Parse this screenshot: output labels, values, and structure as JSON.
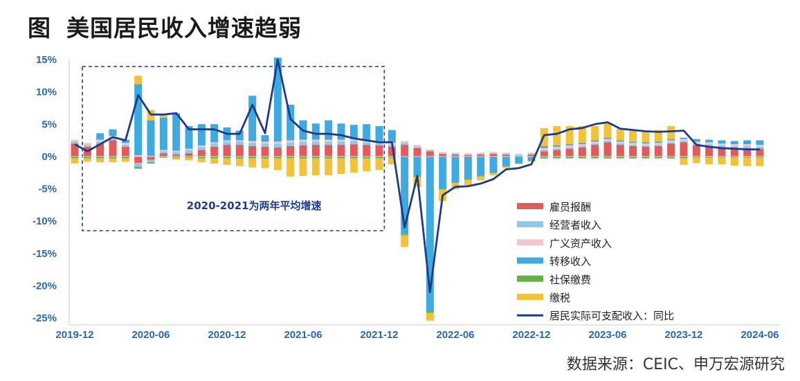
{
  "title": {
    "prefix": "图",
    "text": "美国居民收入增速趋弱"
  },
  "source": "数据来源：CEIC、申万宏源研究",
  "colors": {
    "employee_comp": "#e05c5c",
    "business_income": "#8ec9ec",
    "asset_income": "#f2c7cb",
    "transfer_income": "#3fa9e0",
    "social_insurance": "#6aae48",
    "taxes": "#f3c23b",
    "real_disposable": "#1e3a8a",
    "axis_text": "#2a66b3",
    "box": "#1f3e8c"
  },
  "chart_data": {
    "type": "bar+line",
    "stacked": true,
    "grid": false,
    "legend_position": "bottom-right",
    "ylim": [
      -25,
      15
    ],
    "yticks": [
      "15%",
      "10%",
      "5%",
      "0%",
      "-5%",
      "-10%",
      "-15%",
      "-20%",
      "-25%"
    ],
    "xticks": [
      "2019-12",
      "2020-06",
      "2020-12",
      "2021-06",
      "2021-12",
      "2022-06",
      "2022-12",
      "2023-06",
      "2023-12",
      "2024-06"
    ],
    "annotation": "2020-2021为两年平均增速",
    "categories": [
      "2019-12",
      "2020-01",
      "2020-02",
      "2020-03",
      "2020-04",
      "2020-05",
      "2020-06",
      "2020-07",
      "2020-08",
      "2020-09",
      "2020-10",
      "2020-11",
      "2020-12",
      "2021-01",
      "2021-02",
      "2021-03",
      "2021-04",
      "2021-05",
      "2021-06",
      "2021-07",
      "2021-08",
      "2021-09",
      "2021-10",
      "2021-11",
      "2021-12",
      "2022-01",
      "2022-02",
      "2022-03",
      "2022-04",
      "2022-05",
      "2022-06",
      "2022-07",
      "2022-08",
      "2022-09",
      "2022-10",
      "2022-11",
      "2022-12",
      "2023-01",
      "2023-02",
      "2023-03",
      "2023-04",
      "2023-05",
      "2023-06",
      "2023-07",
      "2023-08",
      "2023-09",
      "2023-10",
      "2023-11",
      "2023-12",
      "2024-01",
      "2024-02",
      "2024-03",
      "2024-04",
      "2024-05",
      "2024-06"
    ],
    "series": [
      {
        "name": "雇员报酬",
        "key": "employee_comp",
        "values": [
          2,
          1.5,
          2,
          2.5,
          1.5,
          -1,
          -0.5,
          0.5,
          0.3,
          0.5,
          1,
          1.5,
          1.8,
          1.8,
          1.6,
          1.5,
          1.4,
          1.6,
          1.7,
          1.8,
          1.8,
          1.8,
          1.9,
          1.8,
          1.7,
          1.5,
          1.8,
          1.3,
          0.8,
          0.4,
          0.3,
          0.2,
          0.3,
          0.4,
          0.3,
          0.1,
          0.3,
          0.8,
          1,
          1.2,
          1.4,
          1.8,
          2.2,
          1.8,
          1.6,
          1.5,
          1.6,
          2,
          2.2,
          1.7,
          1.6,
          1.4,
          1.3,
          1.3,
          1.2
        ]
      },
      {
        "name": "经营者收入",
        "key": "business_income",
        "values": [
          0.3,
          0.3,
          0.3,
          0.4,
          0.3,
          -0.6,
          -0.4,
          0.3,
          0.4,
          0.5,
          0.5,
          0.5,
          0.5,
          0.5,
          0.5,
          0.5,
          0.6,
          0.6,
          0.6,
          0.5,
          0.5,
          0.5,
          0.5,
          0.4,
          0.4,
          0.3,
          0.3,
          0.2,
          0.1,
          0.1,
          0.1,
          0.1,
          0.1,
          0.1,
          0.1,
          0.1,
          0.1,
          0.2,
          0.2,
          0.2,
          0.2,
          0.2,
          0.2,
          0.2,
          0.2,
          0.2,
          0.2,
          0.2,
          0.2,
          0.3,
          0.3,
          0.3,
          0.3,
          0.3,
          0.3
        ]
      },
      {
        "name": "广义资产收入",
        "key": "asset_income",
        "values": [
          0.3,
          0.3,
          0.3,
          0.3,
          0.3,
          0.2,
          0.1,
          0.2,
          0.2,
          0.2,
          0.2,
          0.2,
          0.2,
          0.2,
          0.3,
          0.3,
          0.3,
          0.3,
          0.3,
          0.3,
          0.3,
          0.3,
          0.3,
          0.3,
          0.3,
          0.3,
          0.3,
          0.3,
          0.2,
          0.2,
          0.2,
          0.2,
          0.2,
          0.2,
          0.2,
          0.2,
          0.2,
          0.3,
          0.3,
          0.3,
          0.3,
          0.3,
          0.3,
          0.3,
          0.3,
          0.3,
          0.3,
          0.3,
          0.3,
          0.3,
          0.3,
          0.3,
          0.3,
          0.3,
          0.3
        ]
      },
      {
        "name": "转移收入",
        "key": "transfer_income",
        "values": [
          0,
          0,
          1,
          1,
          0.5,
          11,
          5.5,
          5,
          5.8,
          3.5,
          3.3,
          2.8,
          2,
          1.5,
          7,
          1,
          13,
          5.5,
          3,
          2.5,
          3,
          2.5,
          2.2,
          2.5,
          2.3,
          2,
          -12,
          -3,
          -24,
          -5,
          -4,
          -3.5,
          -3,
          -2.5,
          -1.5,
          -1,
          -0.5,
          0.3,
          0.2,
          0.2,
          0.2,
          0.2,
          0.2,
          0.2,
          0.2,
          0.2,
          0.2,
          0.2,
          0.2,
          0.4,
          0.4,
          0.5,
          0.5,
          0.6,
          0.7
        ]
      },
      {
        "name": "社保缴费",
        "key": "social_insurance",
        "values": [
          -0.3,
          -0.3,
          -0.3,
          -0.3,
          -0.3,
          -0.3,
          -0.2,
          -0.2,
          -0.2,
          -0.2,
          -0.3,
          -0.3,
          -0.3,
          -0.3,
          -0.3,
          -0.3,
          -0.3,
          -0.3,
          -0.3,
          -0.3,
          -0.3,
          -0.3,
          -0.3,
          -0.3,
          -0.3,
          -0.2,
          -0.2,
          -0.2,
          -0.2,
          -0.1,
          -0.1,
          -0.1,
          -0.1,
          -0.1,
          -0.1,
          -0.1,
          -0.2,
          -0.3,
          -0.3,
          -0.3,
          -0.3,
          -0.3,
          -0.3,
          -0.3,
          -0.3,
          -0.3,
          -0.3,
          -0.3,
          -0.3,
          -0.2,
          -0.2,
          -0.2,
          -0.2,
          -0.2,
          -0.2
        ]
      },
      {
        "name": "缴税",
        "key": "taxes",
        "values": [
          -0.8,
          -0.5,
          -0.6,
          -0.6,
          -0.5,
          1.3,
          1.6,
          0.6,
          -0.3,
          -0.4,
          -0.6,
          -0.8,
          -1,
          -1.2,
          -1.4,
          -1.5,
          -1.8,
          -2.8,
          -2.7,
          -2.6,
          -2.6,
          -2.4,
          -2.2,
          -2,
          -1.8,
          -1,
          -1.8,
          -1.5,
          -1.2,
          -1.8,
          -1,
          -0.8,
          -0.6,
          -0.3,
          -0.2,
          -0.1,
          -0.1,
          2.8,
          3,
          2.8,
          2.6,
          2.2,
          2.3,
          1.8,
          1.8,
          1.6,
          1.8,
          2,
          -1,
          -0.8,
          -1,
          -1,
          -1.2,
          -1.3,
          -1.3
        ]
      }
    ],
    "line": {
      "name": "居民实际可支配收入：同比",
      "key": "real_disposable",
      "values": [
        1.9,
        0.8,
        1.9,
        3,
        2.5,
        9.5,
        6.5,
        6.5,
        6.7,
        4.2,
        4.2,
        4.2,
        3.5,
        3.5,
        8,
        3.6,
        15,
        5.8,
        4,
        3.5,
        3.5,
        3.3,
        2.8,
        2.5,
        2.2,
        2.2,
        -11,
        -3,
        -21,
        -6,
        -4.7,
        -4.6,
        -4.2,
        -3.5,
        -2,
        -1.8,
        -1.2,
        3.3,
        3.5,
        4.2,
        4.4,
        5,
        5.3,
        4.3,
        4.1,
        3.9,
        3.8,
        3.9,
        4,
        1.8,
        1.5,
        1.3,
        1.2,
        1.1,
        1.1
      ]
    }
  }
}
